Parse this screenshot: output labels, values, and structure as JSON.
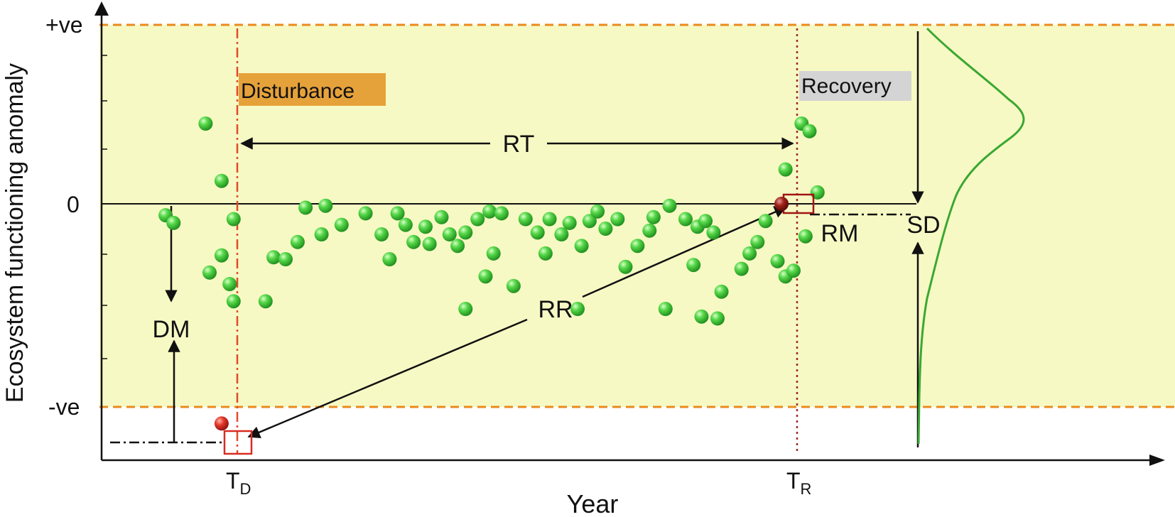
{
  "axes": {
    "y_label": "Ecosystem functioning anomaly",
    "x_label": "Year",
    "y_ticks": {
      "pos": "+ve",
      "zero": "0",
      "neg": "-ve"
    },
    "x_ticks": {
      "disturbance": {
        "main": "T",
        "sub": "D"
      },
      "recovery": {
        "main": "T",
        "sub": "R"
      }
    }
  },
  "events": {
    "disturbance_label": "Disturbance",
    "recovery_label": "Recovery"
  },
  "metrics": {
    "rt": "RT",
    "rr": "RR",
    "rm": "RM",
    "dm": "DM",
    "sd": "SD"
  },
  "colors": {
    "band_fill": "#f7f9c4",
    "band_border": "#ea8a1f",
    "disturbance_line": "#e04a2a",
    "recovery_line": "#9c2a2a",
    "disturbance_box": "#e6a23a",
    "recovery_box": "#d4d4d4",
    "points": "#3cbf3a",
    "distribution_curve": "#3aa832",
    "marker_red": "#d82c22",
    "marker_dark": "#a11515"
  },
  "chart_data": {
    "type": "scatter",
    "title": "",
    "xlabel": "Year",
    "ylabel": "Ecosystem functioning anomaly",
    "x_range_years": [
      0,
      23
    ],
    "y_range_anomaly": [
      -1.2,
      1.3
    ],
    "band_limits": {
      "lower": -1.0,
      "upper": 1.0
    },
    "disturbance_point": {
      "x": 3,
      "y": -1.15
    },
    "recovery_point": {
      "x": 17,
      "y": 0.0
    },
    "series": [
      {
        "name": "annual anomalies",
        "points": [
          [
            2.6,
            0.42
          ],
          [
            3.0,
            0.12
          ],
          [
            1.6,
            -0.06
          ],
          [
            1.8,
            -0.1
          ],
          [
            2.7,
            -0.36
          ],
          [
            3.0,
            -0.27
          ],
          [
            3.2,
            -0.42
          ],
          [
            3.3,
            -0.51
          ],
          [
            4.1,
            -0.51
          ],
          [
            3.3,
            -0.08
          ],
          [
            4.3,
            -0.28
          ],
          [
            4.6,
            -0.29
          ],
          [
            4.9,
            -0.2
          ],
          [
            5.5,
            -0.16
          ],
          [
            5.6,
            -0.01
          ],
          [
            6.0,
            -0.11
          ],
          [
            6.6,
            -0.05
          ],
          [
            7.0,
            -0.16
          ],
          [
            7.2,
            -0.29
          ],
          [
            7.4,
            -0.05
          ],
          [
            7.6,
            -0.11
          ],
          [
            7.8,
            -0.2
          ],
          [
            8.1,
            -0.12
          ],
          [
            8.2,
            -0.21
          ],
          [
            8.5,
            -0.07
          ],
          [
            8.7,
            -0.16
          ],
          [
            8.9,
            -0.22
          ],
          [
            9.1,
            -0.15
          ],
          [
            9.4,
            -0.08
          ],
          [
            9.7,
            -0.04
          ],
          [
            9.8,
            -0.26
          ],
          [
            9.6,
            -0.38
          ],
          [
            9.1,
            -0.55
          ],
          [
            10.0,
            -0.05
          ],
          [
            10.3,
            -0.43
          ],
          [
            10.6,
            -0.08
          ],
          [
            10.9,
            -0.15
          ],
          [
            11.1,
            -0.26
          ],
          [
            11.2,
            -0.08
          ],
          [
            11.5,
            -0.16
          ],
          [
            11.7,
            -0.1
          ],
          [
            11.9,
            -0.55
          ],
          [
            12.0,
            -0.22
          ],
          [
            12.2,
            -0.09
          ],
          [
            12.4,
            -0.04
          ],
          [
            12.6,
            -0.13
          ],
          [
            12.9,
            -0.08
          ],
          [
            13.1,
            -0.33
          ],
          [
            13.4,
            -0.22
          ],
          [
            13.7,
            -0.14
          ],
          [
            13.8,
            -0.07
          ],
          [
            14.1,
            -0.55
          ],
          [
            14.2,
            -0.01
          ],
          [
            14.6,
            -0.08
          ],
          [
            14.8,
            -0.32
          ],
          [
            14.9,
            -0.12
          ],
          [
            15.1,
            -0.09
          ],
          [
            15.3,
            -0.15
          ],
          [
            15.5,
            -0.46
          ],
          [
            15.0,
            -0.59
          ],
          [
            15.4,
            -0.6
          ],
          [
            16.0,
            -0.34
          ],
          [
            16.2,
            -0.26
          ],
          [
            16.4,
            -0.2
          ],
          [
            16.6,
            -0.09
          ],
          [
            16.9,
            -0.3
          ],
          [
            17.1,
            -0.38
          ],
          [
            17.3,
            -0.35
          ],
          [
            17.6,
            -0.17
          ],
          [
            17.1,
            0.18
          ],
          [
            17.5,
            0.42
          ],
          [
            17.7,
            0.38
          ],
          [
            17.9,
            0.06
          ],
          [
            5.1,
            -0.02
          ]
        ]
      }
    ]
  }
}
